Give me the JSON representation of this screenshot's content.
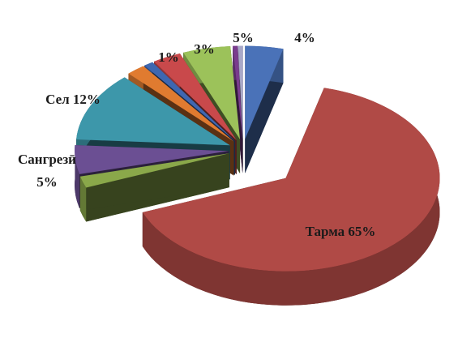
{
  "chart_data": {
    "type": "pie3d",
    "categories": [
      null,
      "Тарма",
      null,
      "Сангрезӣ",
      "Сел",
      null,
      null,
      null,
      null,
      null,
      null
    ],
    "values": [
      4,
      65,
      2,
      5,
      12,
      2,
      1,
      3,
      5,
      0.5,
      0.5
    ],
    "value_labels": [
      "4%",
      "65%",
      null,
      "5%",
      "12%",
      null,
      "1%",
      "3%",
      "5%",
      null,
      null
    ],
    "colors": [
      "#4a72b8",
      "#b04a46",
      "#8aa84a",
      "#6b4f93",
      "#3d97aa",
      "#e07b30",
      "#3f67b0",
      "#c9494b",
      "#9cc25a",
      "#7a3c8e",
      "#a8a8c8"
    ]
  }
}
